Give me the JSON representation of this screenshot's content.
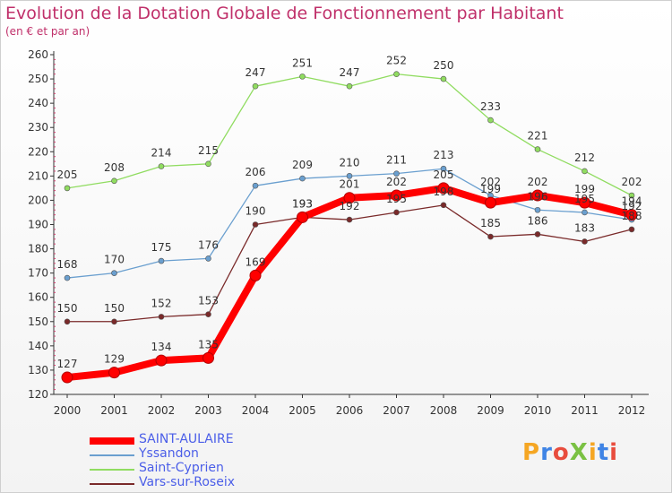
{
  "header": {
    "title": "Evolution de la Dotation Globale de Fonctionnement par Habitant",
    "subtitle": "(en € et par an)"
  },
  "logo": {
    "text": "ProXiti",
    "colors": [
      "#f5a623",
      "#3f84e5",
      "#e84c3d",
      "#7ac143",
      "#f5a623",
      "#3f84e5",
      "#e84c3d"
    ]
  },
  "chart_data": {
    "type": "line",
    "categories": [
      "2000",
      "2001",
      "2002",
      "2003",
      "2004",
      "2005",
      "2006",
      "2007",
      "2008",
      "2009",
      "2010",
      "2011",
      "2012"
    ],
    "ylim": [
      120,
      260
    ],
    "yticks": [
      120,
      130,
      140,
      150,
      160,
      170,
      180,
      190,
      200,
      210,
      220,
      230,
      240,
      250,
      260
    ],
    "grid": "minor ticks on y axis, no grid lines",
    "legend_position": "bottom-left",
    "series": [
      {
        "name": "SAINT-AULAIRE",
        "color": "#ff0000",
        "width": 8,
        "point": 6,
        "values": [
          127,
          129,
          134,
          135,
          169,
          193,
          201,
          202,
          205,
          199,
          202,
          199,
          194
        ],
        "labels": [
          "127",
          "129",
          "134",
          "135",
          "169",
          "193",
          "201",
          "202",
          "205",
          "199",
          "202",
          "199",
          "194"
        ]
      },
      {
        "name": "Yssandon",
        "color": "#6a9fcf",
        "width": 1.3,
        "point": 3,
        "values": [
          168,
          170,
          175,
          176,
          206,
          209,
          210,
          211,
          213,
          202,
          196,
          195,
          192
        ],
        "labels": [
          "168",
          "170",
          "175",
          "176",
          "206",
          "209",
          "210",
          "211",
          "213",
          "202",
          "196",
          "195",
          "192"
        ]
      },
      {
        "name": "Saint-Cyprien",
        "color": "#90dc60",
        "width": 1.3,
        "point": 3,
        "values": [
          205,
          208,
          214,
          215,
          247,
          251,
          247,
          252,
          250,
          233,
          221,
          212,
          202
        ],
        "labels": [
          "205",
          "208",
          "214",
          "215",
          "247",
          "251",
          "247",
          "252",
          "250",
          "233",
          "221",
          "212",
          "202"
        ]
      },
      {
        "name": "Vars-sur-Roseix",
        "color": "#7a2a2a",
        "width": 1.3,
        "point": 3,
        "values": [
          150,
          150,
          152,
          153,
          190,
          193,
          192,
          195,
          198,
          185,
          186,
          183,
          188
        ],
        "labels": [
          "150",
          "150",
          "152",
          "153",
          "190",
          "193",
          "192",
          "195",
          "198",
          "185",
          "186",
          "183",
          "188"
        ]
      }
    ]
  }
}
